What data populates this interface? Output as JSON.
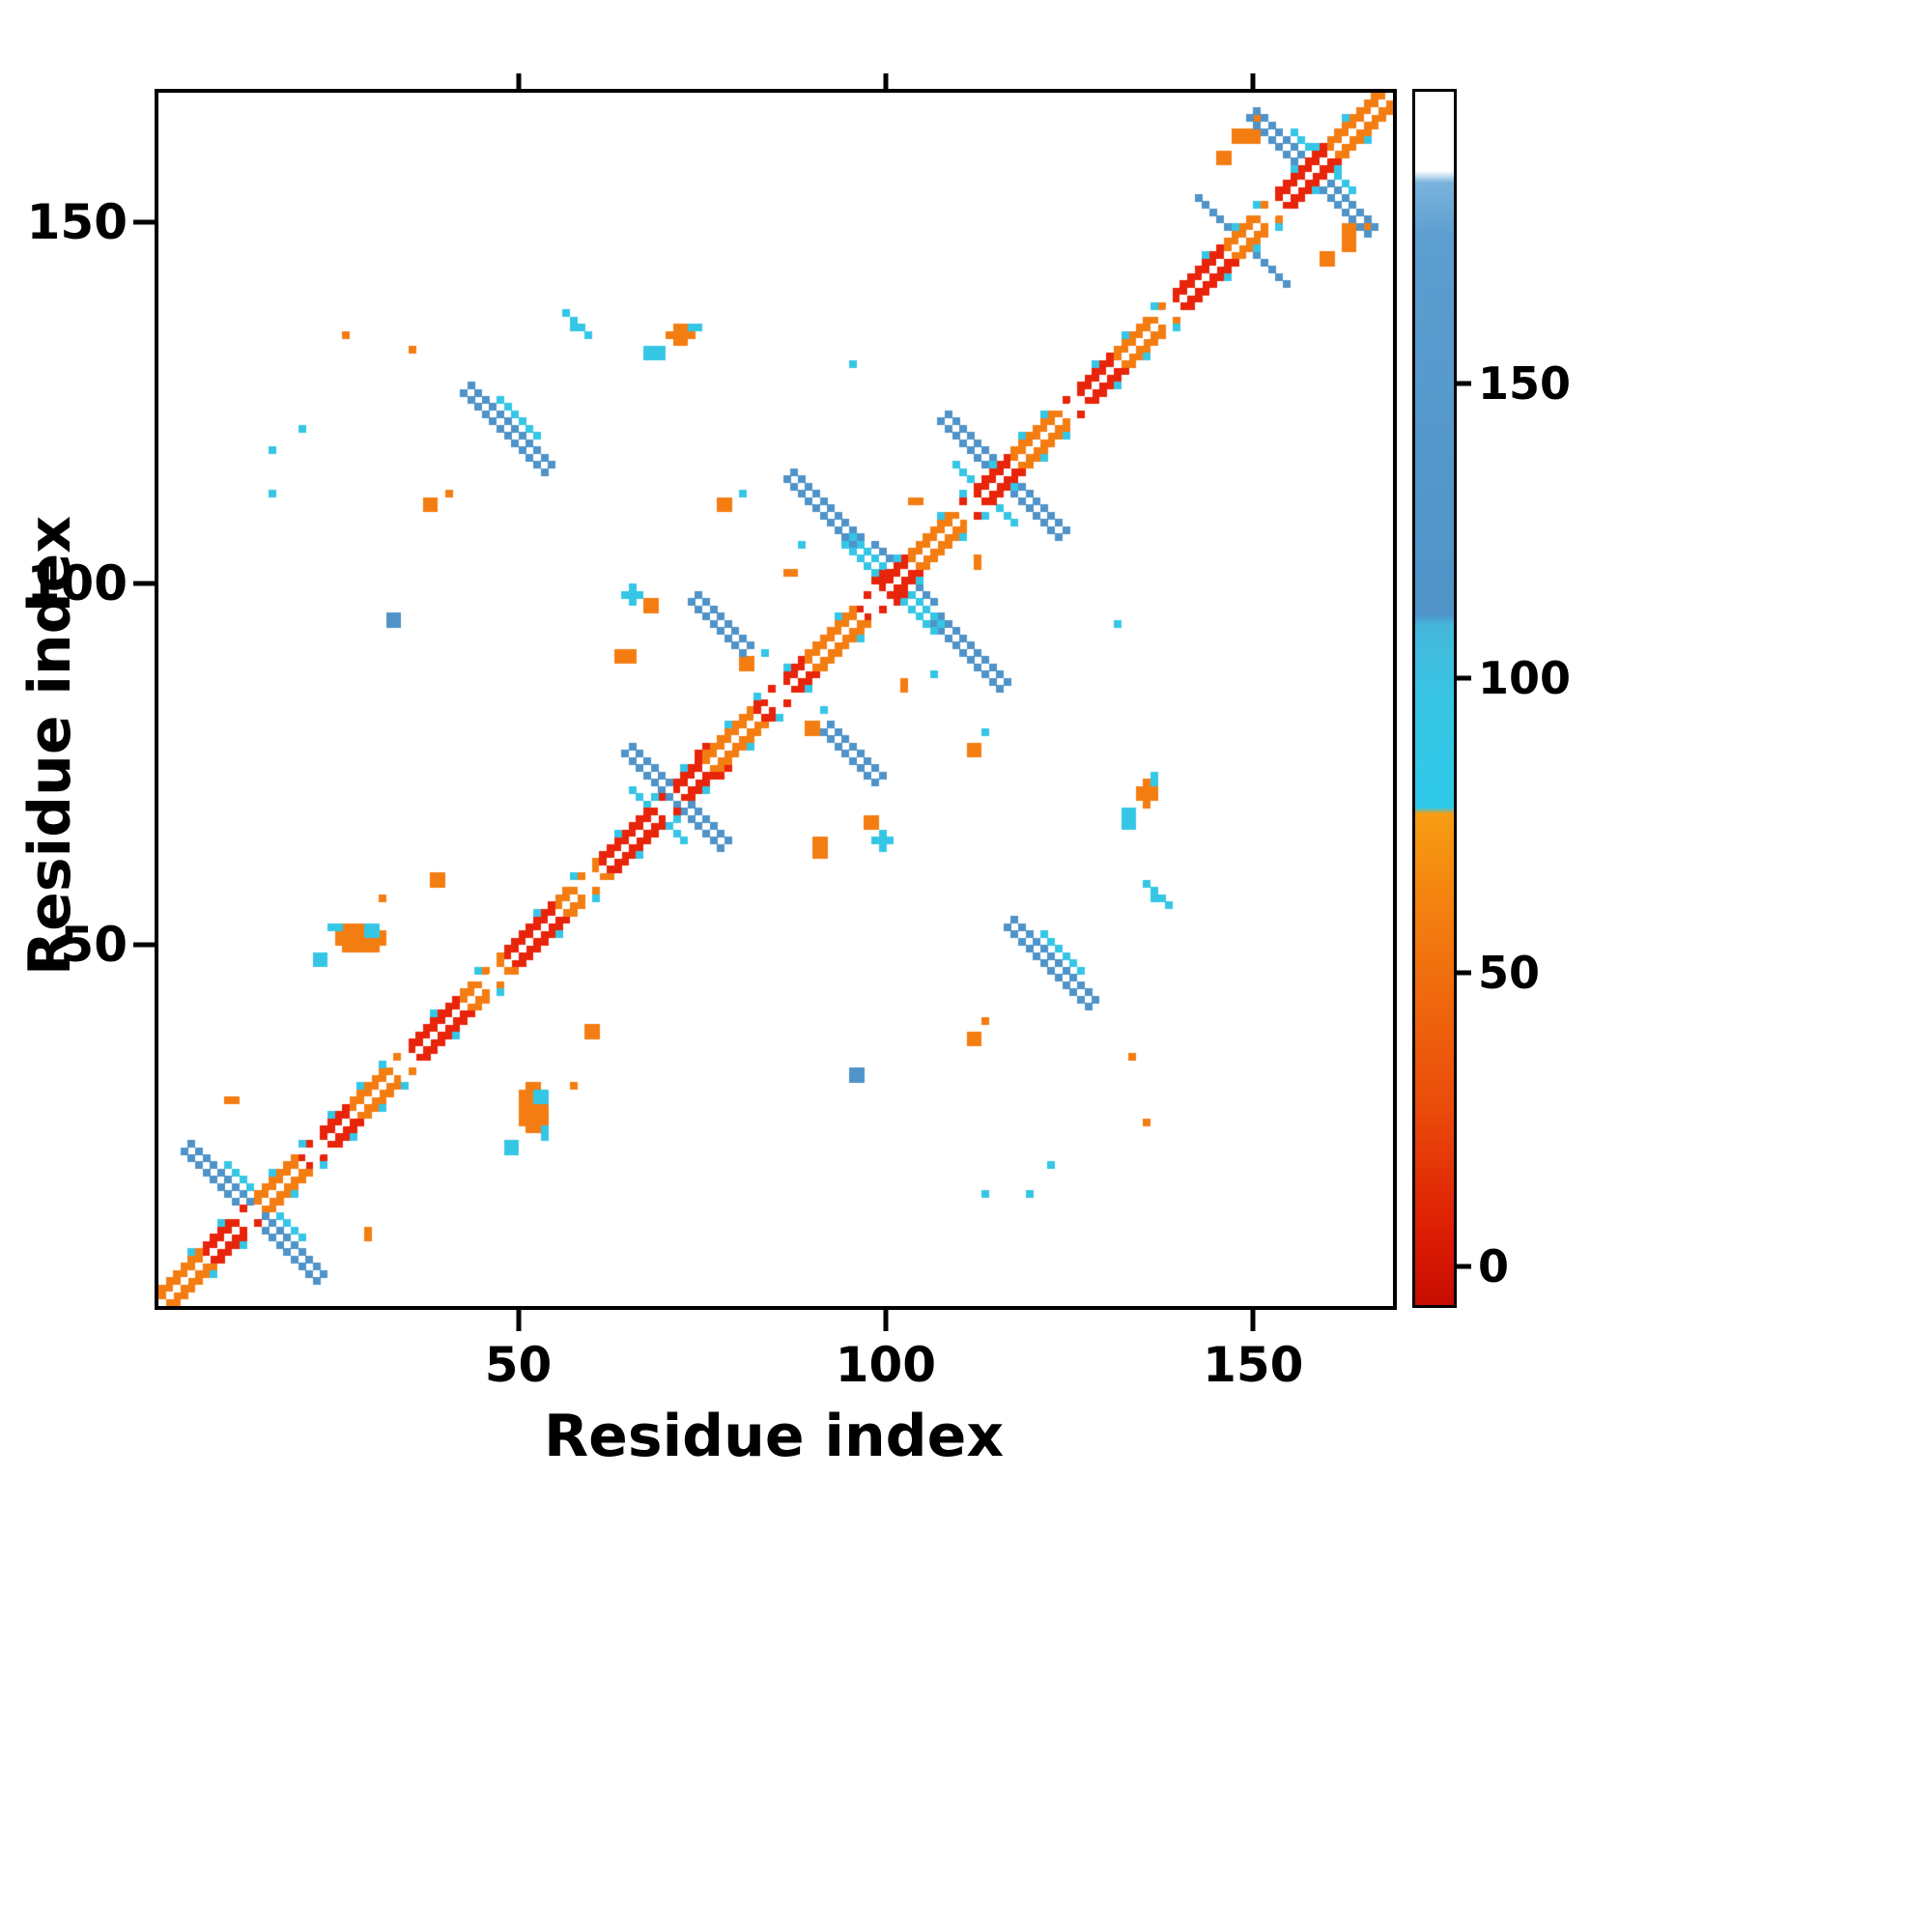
{
  "chart_data": {
    "type": "heatmap",
    "title": "",
    "xlabel": "Residue index",
    "ylabel": "Residue index",
    "n": 168,
    "x_range": [
      1,
      168
    ],
    "y_range": [
      1,
      168
    ],
    "x_ticks": [
      50,
      100,
      150
    ],
    "y_ticks": [
      50,
      100,
      150
    ],
    "grid": false,
    "legend": "colorbar-right",
    "palette": {
      "red": "#e8240a",
      "red2": "#d31500",
      "orange": "#f47d12",
      "orange2": "#f2640e",
      "cyan": "#35c6e6",
      "blue": "#4f93c8",
      "white": "#ffffff"
    },
    "colorbar": {
      "min": -6,
      "max": 200,
      "ticks": [
        0,
        50,
        100,
        150
      ],
      "gradient": [
        [
          "0%",
          "#c60c00"
        ],
        [
          "6%",
          "#dd1d03"
        ],
        [
          "16%",
          "#ea4a0a"
        ],
        [
          "30%",
          "#f2770f"
        ],
        [
          "40.5%",
          "#f89c12"
        ],
        [
          "41%",
          "#2ec9ea"
        ],
        [
          "50%",
          "#38c5e4"
        ],
        [
          "56%",
          "#45b7dc"
        ],
        [
          "57%",
          "#4f93c8"
        ],
        [
          "88%",
          "#5c9ed0"
        ],
        [
          "92.5%",
          "#7ab3dd"
        ],
        [
          "93.5%",
          "#ffffff"
        ],
        [
          "100%",
          "#ffffff"
        ]
      ]
    },
    "diagonal": {
      "width": 2,
      "gaps": [
        13,
        22,
        34,
        46,
        59,
        70,
        85,
        98,
        111,
        125,
        138,
        152
      ],
      "fringe": [
        5,
        9,
        16,
        20,
        24,
        28,
        31,
        38,
        44,
        52,
        57,
        63,
        68,
        72,
        78,
        82,
        86,
        93,
        101,
        107,
        110,
        114,
        118,
        121,
        128,
        132,
        136,
        143,
        147,
        150,
        155,
        158,
        162,
        166
      ],
      "fringe_color": "cyan",
      "segments": [
        {
          "from": 1,
          "to": 6,
          "color": "orange"
        },
        {
          "from": 7,
          "to": 13,
          "color": "red"
        },
        {
          "from": 14,
          "to": 19,
          "color": "orange"
        },
        {
          "from": 20,
          "to": 26,
          "color": "red"
        },
        {
          "from": 27,
          "to": 33,
          "color": "orange"
        },
        {
          "from": 34,
          "to": 41,
          "color": "red"
        },
        {
          "from": 42,
          "to": 47,
          "color": "orange"
        },
        {
          "from": 48,
          "to": 54,
          "color": "red"
        },
        {
          "from": 55,
          "to": 60,
          "color": "orange"
        },
        {
          "from": 61,
          "to": 74,
          "color": "red"
        },
        {
          "from": 75,
          "to": 81,
          "color": "orange"
        },
        {
          "from": 82,
          "to": 88,
          "color": "red"
        },
        {
          "from": 89,
          "to": 95,
          "color": "orange"
        },
        {
          "from": 96,
          "to": 102,
          "color": "red"
        },
        {
          "from": 103,
          "to": 109,
          "color": "orange"
        },
        {
          "from": 110,
          "to": 116,
          "color": "red"
        },
        {
          "from": 117,
          "to": 123,
          "color": "orange"
        },
        {
          "from": 124,
          "to": 130,
          "color": "red"
        },
        {
          "from": 131,
          "to": 137,
          "color": "orange"
        },
        {
          "from": 138,
          "to": 145,
          "color": "red"
        },
        {
          "from": 146,
          "to": 152,
          "color": "orange"
        },
        {
          "from": 153,
          "to": 159,
          "color": "red"
        },
        {
          "from": 160,
          "to": 168,
          "color": "orange"
        }
      ]
    },
    "crosses": [
      {
        "c": 13,
        "len": 18,
        "t": 2,
        "off": 0,
        "color": "blue"
      },
      {
        "c": 13,
        "len": 10,
        "t": 1,
        "off": 2,
        "color": "cyan"
      },
      {
        "c": 70,
        "len": 13,
        "t": 2,
        "off": 0,
        "color": "blue"
      },
      {
        "c": 70,
        "len": 7,
        "t": 1,
        "off": -2,
        "color": "cyan"
      },
      {
        "c": 100,
        "len": 12,
        "t": 2,
        "off": 0,
        "color": "cyan"
      },
      {
        "c": 100,
        "len": 8,
        "t": 1,
        "off": 2,
        "color": "blue"
      },
      {
        "c": 115,
        "len": 16,
        "t": 2,
        "off": 0,
        "color": "blue"
      },
      {
        "c": 115,
        "len": 8,
        "t": 1,
        "off": -2,
        "color": "cyan"
      },
      {
        "c": 157,
        "len": 16,
        "t": 2,
        "off": 0,
        "color": "blue"
      },
      {
        "c": 157,
        "len": 8,
        "t": 1,
        "off": 2,
        "color": "cyan"
      }
    ],
    "anti_segments": [
      {
        "ci": 48,
        "cj": 121,
        "len": 12,
        "t": 2,
        "off": 0,
        "color": "blue"
      },
      {
        "ci": 48,
        "cj": 121,
        "len": 6,
        "t": 1,
        "off": 2,
        "color": "cyan"
      },
      {
        "ci": 91,
        "cj": 110,
        "len": 10,
        "t": 2,
        "off": 0,
        "color": "blue"
      },
      {
        "ci": 77,
        "cj": 94,
        "len": 8,
        "t": 2,
        "off": 0,
        "color": "blue"
      },
      {
        "ci": 58,
        "cj": 136,
        "len": 4,
        "t": 1,
        "off": 0,
        "color": "cyan"
      },
      {
        "ci": 144,
        "cj": 151,
        "len": 5,
        "t": 1,
        "off": 0,
        "color": "blue"
      }
    ],
    "blobs": [
      {
        "i": 25,
        "j": 50,
        "w": 7,
        "h": 4,
        "color": "orange"
      },
      {
        "i": 22,
        "j": 48,
        "w": 2,
        "h": 2,
        "color": "cyan"
      },
      {
        "i": 29,
        "j": 52,
        "w": 2,
        "h": 2,
        "color": "cyan"
      },
      {
        "i": 24,
        "j": 53,
        "w": 2,
        "h": 1,
        "color": "cyan"
      },
      {
        "i": 51,
        "j": 52,
        "w": 4,
        "h": 3,
        "color": "red"
      },
      {
        "i": 74,
        "j": 76,
        "w": 4,
        "h": 3,
        "color": "red"
      },
      {
        "i": 98,
        "j": 100,
        "w": 3,
        "h": 3,
        "color": "red"
      },
      {
        "i": 70,
        "j": 134,
        "w": 4,
        "h": 3,
        "color": "orange"
      },
      {
        "i": 67,
        "j": 132,
        "w": 3,
        "h": 2,
        "color": "cyan"
      },
      {
        "i": 73,
        "j": 136,
        "w": 2,
        "h": 1,
        "color": "cyan"
      },
      {
        "i": 147,
        "j": 162,
        "w": 4,
        "h": 2,
        "color": "orange"
      },
      {
        "i": 145,
        "j": 159,
        "w": 2,
        "h": 2,
        "color": "orange"
      },
      {
        "i": 150,
        "j": 164,
        "w": 1,
        "h": 2,
        "color": "orange"
      },
      {
        "i": 37,
        "j": 111,
        "w": 2,
        "h": 2,
        "color": "orange"
      },
      {
        "i": 40,
        "j": 113,
        "w": 1,
        "h": 1,
        "color": "orange"
      },
      {
        "i": 77,
        "j": 111,
        "w": 2,
        "h": 2,
        "color": "orange"
      },
      {
        "i": 80,
        "j": 113,
        "w": 1,
        "h": 1,
        "color": "cyan"
      },
      {
        "i": 64,
        "j": 98,
        "w": 3,
        "h": 3,
        "color": "cyan"
      },
      {
        "i": 67,
        "j": 97,
        "w": 2,
        "h": 2,
        "color": "orange"
      },
      {
        "i": 80,
        "j": 89,
        "w": 2,
        "h": 2,
        "color": "orange"
      },
      {
        "i": 83,
        "j": 91,
        "w": 1,
        "h": 1,
        "color": "cyan"
      },
      {
        "i": 63,
        "j": 90,
        "w": 3,
        "h": 2,
        "color": "orange"
      },
      {
        "i": 38,
        "j": 59,
        "w": 2,
        "h": 2,
        "color": "orange"
      },
      {
        "i": 31,
        "j": 57,
        "w": 1,
        "h": 1,
        "color": "orange"
      },
      {
        "i": 10,
        "j": 29,
        "w": 2,
        "h": 1,
        "color": "orange"
      },
      {
        "i": 26,
        "j": 135,
        "w": 1,
        "h": 1,
        "color": "orange"
      },
      {
        "i": 35,
        "j": 133,
        "w": 1,
        "h": 1,
        "color": "orange"
      },
      {
        "i": 32,
        "j": 95,
        "w": 2,
        "h": 2,
        "color": "blue"
      },
      {
        "i": 16,
        "j": 113,
        "w": 1,
        "h": 1,
        "color": "cyan"
      },
      {
        "i": 16,
        "j": 119,
        "w": 1,
        "h": 1,
        "color": "cyan"
      },
      {
        "i": 20,
        "j": 122,
        "w": 1,
        "h": 1,
        "color": "cyan"
      },
      {
        "i": 95,
        "j": 131,
        "w": 1,
        "h": 1,
        "color": "cyan"
      },
      {
        "i": 88,
        "j": 106,
        "w": 1,
        "h": 1,
        "color": "cyan"
      },
      {
        "i": 57,
        "j": 136,
        "w": 1,
        "h": 1,
        "color": "cyan"
      },
      {
        "i": 103,
        "j": 112,
        "w": 2,
        "h": 1,
        "color": "orange"
      },
      {
        "i": 86,
        "j": 102,
        "w": 2,
        "h": 1,
        "color": "orange"
      }
    ]
  }
}
